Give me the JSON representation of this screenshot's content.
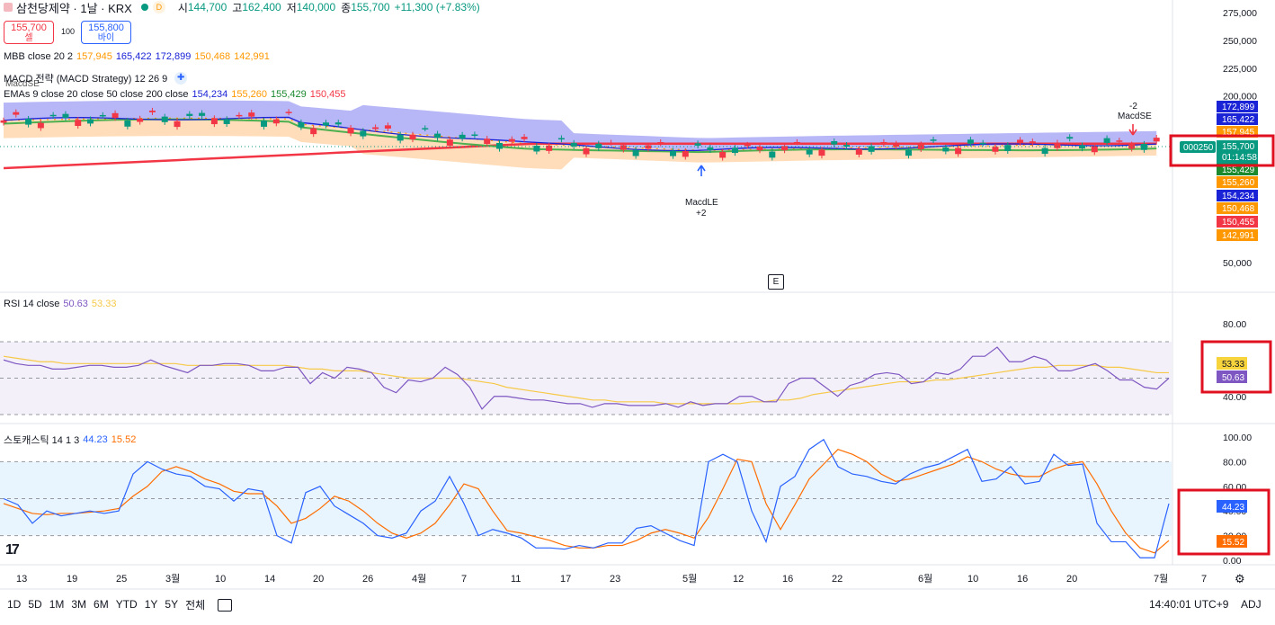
{
  "header": {
    "symbol": "삼천당제약 · 1날 · KRX",
    "d_badge": "D",
    "open_label": "시",
    "open": "144,700",
    "high_label": "고",
    "high": "162,400",
    "low_label": "저",
    "low": "140,000",
    "close_label": "종",
    "close": "155,700",
    "change": "+11,300 (+7.83%)"
  },
  "trade": {
    "sell_price": "155,700",
    "sell_label": "셀",
    "qty": "100",
    "buy_price": "155,800",
    "buy_label": "바이"
  },
  "indicators": {
    "mbb": {
      "label": "MBB close 20 2",
      "v1": "157,945",
      "v2": "165,422",
      "v3": "172,899",
      "v4": "150,468",
      "v5": "142,991"
    },
    "macd": {
      "label": "MACD 전략 (MACD Strategy) 12 26 9"
    },
    "ema": {
      "label": "EMAs 9 close 20 close 50 close 200 close",
      "v1": "154,234",
      "v2": "155,260",
      "v3": "155,429",
      "v4": "150,455"
    }
  },
  "price_axis": [
    "275,000",
    "250,000",
    "225,000",
    "200,000",
    "50,000"
  ],
  "price_tags": [
    {
      "text": "172,899",
      "color": "#1a23d6"
    },
    {
      "text": "165,422",
      "color": "#1a23d6"
    },
    {
      "text": "157,945",
      "color": "#ff9800"
    },
    {
      "text": "155,429",
      "color": "#1b8a2f"
    },
    {
      "text": "155,260",
      "color": "#ff9800"
    },
    {
      "text": "154,234",
      "color": "#1a23d6"
    },
    {
      "text": "150,468",
      "color": "#ff9800"
    },
    {
      "text": "150,455",
      "color": "#f23645"
    },
    {
      "text": "142,991",
      "color": "#ff9800"
    }
  ],
  "last_price": {
    "code": "000250",
    "price": "155,700",
    "countdown": "01:14:58",
    "color": "#089981"
  },
  "signals": {
    "top_left": "MacdSE",
    "macd_le": "MacdLE",
    "macd_le_qty": "+2",
    "macd_se": "MacdSE",
    "macd_se_qty": "-2"
  },
  "earnings_marker": "E",
  "rsi": {
    "label": "RSI 14 close",
    "v1": "50.63",
    "v2": "53.33",
    "axis": [
      "80.00",
      "60.00",
      "40.00"
    ],
    "tag_ma": "53.33",
    "tag_rsi": "50.63"
  },
  "stoch": {
    "label": "스토캐스틱 14 1 3",
    "v1": "44.23",
    "v2": "15.52",
    "axis": [
      "100.00",
      "80.00",
      "60.00",
      "40.00",
      "20.00",
      "0.00"
    ],
    "tag_k": "44.23",
    "tag_d": "15.52"
  },
  "time_axis": [
    "13",
    "19",
    "25",
    "3월",
    "10",
    "14",
    "20",
    "26",
    "4월",
    "7",
    "11",
    "17",
    "23",
    "5월",
    "12",
    "16",
    "22",
    "6월",
    "10",
    "16",
    "20",
    "7월",
    "7"
  ],
  "bottom": {
    "ranges": [
      "1D",
      "5D",
      "1M",
      "3M",
      "6M",
      "YTD",
      "1Y",
      "5Y",
      "전체"
    ],
    "time": "14:40:01 UTC+9",
    "adj": "ADJ"
  },
  "chart_data": {
    "type": "line",
    "title": "",
    "panels": [
      {
        "name": "price",
        "ylim": [
          50000,
          275000
        ]
      },
      {
        "name": "rsi",
        "ylim": [
          20,
          100
        ],
        "series": [
          {
            "name": "RSI",
            "values": [
              60,
              58,
              57,
              57,
              55,
              55,
              56,
              57,
              57,
              56,
              56,
              57,
              60,
              57,
              55,
              53,
              57,
              57,
              58,
              58,
              57,
              54,
              54,
              56,
              56,
              47,
              53,
              50,
              56,
              55,
              53,
              45,
              42,
              49,
              48,
              50,
              56,
              52,
              45,
              33,
              40,
              40,
              39,
              38,
              38,
              37,
              36,
              36,
              34,
              36,
              36,
              35,
              35,
              35,
              36,
              34,
              37,
              35,
              36,
              36,
              40,
              40,
              37,
              37,
              47,
              50,
              50,
              45,
              40,
              46,
              48,
              52,
              53,
              52,
              47,
              48,
              53,
              52,
              55,
              62,
              62,
              67,
              59,
              59,
              62,
              60,
              54,
              54,
              56,
              58,
              54,
              49,
              49,
              45,
              44,
              50
            ]
          },
          {
            "name": "RSI MA",
            "values": [
              62,
              61,
              60,
              59,
              59,
              58,
              58,
              58,
              58,
              58,
              58,
              58,
              58,
              58,
              58,
              57,
              57,
              57,
              57,
              57,
              57,
              57,
              57,
              57,
              56,
              55,
              55,
              54,
              54,
              54,
              53,
              52,
              51,
              50,
              50,
              50,
              50,
              50,
              49,
              48,
              47,
              45,
              44,
              43,
              42,
              41,
              40,
              39,
              38,
              38,
              37,
              37,
              37,
              37,
              36,
              36,
              36,
              36,
              36,
              36,
              36,
              37,
              37,
              38,
              38,
              39,
              41,
              42,
              43,
              44,
              45,
              46,
              47,
              48,
              48,
              48,
              49,
              49,
              50,
              51,
              52,
              53,
              54,
              55,
              56,
              56,
              57,
              57,
              57,
              57,
              56,
              56,
              55,
              54,
              53,
              53
            ]
          }
        ]
      },
      {
        "name": "stochastic",
        "ylim": [
          0,
          100
        ],
        "series": [
          {
            "name": "%K",
            "values": [
              50,
              45,
              30,
              40,
              36,
              38,
              40,
              38,
              40,
              70,
              80,
              74,
              70,
              68,
              60,
              58,
              48,
              58,
              56,
              20,
              14,
              55,
              60,
              44,
              37,
              30,
              20,
              18,
              22,
              40,
              48,
              68,
              46,
              20,
              25,
              22,
              18,
              10,
              10,
              9,
              12,
              10,
              14,
              14,
              26,
              28,
              22,
              16,
              12,
              80,
              86,
              80,
              40,
              15,
              60,
              68,
              90,
              98,
              76,
              70,
              68,
              64,
              62,
              70,
              75,
              78,
              84,
              90,
              64,
              66,
              76,
              62,
              64,
              86,
              77,
              78,
              30,
              15,
              15,
              2,
              2,
              46
            ]
          },
          {
            "name": "%D",
            "values": [
              46,
              42,
              38,
              37,
              38,
              38,
              39,
              40,
              42,
              52,
              60,
              72,
              76,
              72,
              66,
              62,
              56,
              54,
              54,
              44,
              30,
              34,
              42,
              52,
              48,
              40,
              30,
              22,
              18,
              22,
              30,
              45,
              62,
              58,
              40,
              24,
              22,
              19,
              16,
              12,
              10,
              10,
              12,
              12,
              16,
              22,
              25,
              22,
              18,
              35,
              58,
              82,
              80,
              46,
              25,
              45,
              66,
              78,
              90,
              86,
              80,
              70,
              64,
              66,
              70,
              74,
              78,
              84,
              80,
              74,
              70,
              68,
              68,
              74,
              78,
              80,
              62,
              40,
              22,
              10,
              6,
              16
            ]
          }
        ]
      }
    ]
  }
}
